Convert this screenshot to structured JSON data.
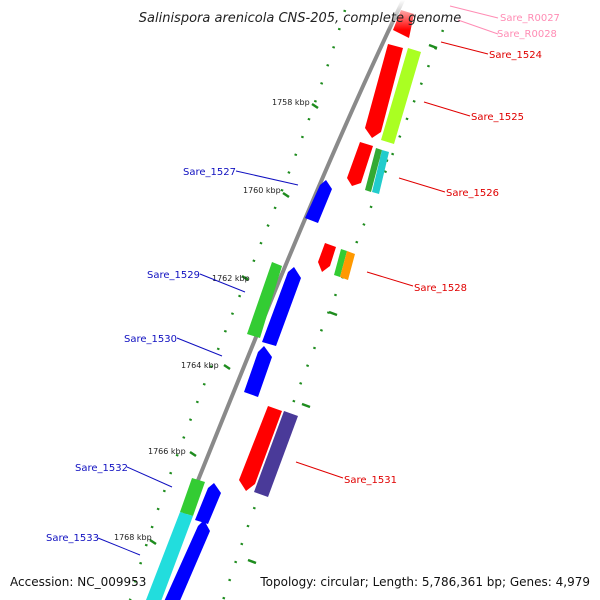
{
  "title": "Salinispora arenicola CNS-205, complete genome",
  "footer": {
    "accession": "Accession: NC_009953",
    "summary": "Topology: circular; Length: 5,786,361 bp; Genes: 4,979"
  },
  "ticks": [
    "1758 kbp",
    "1760 kbp",
    "1762 kbp",
    "1764 kbp",
    "1766 kbp",
    "1768 kbp"
  ],
  "genes": {
    "Sare_R0027": {
      "label": "Sare_R0027",
      "color": "#ff8cb4"
    },
    "Sare_R0028": {
      "label": "Sare_R0028",
      "color": "#ff8cb4"
    },
    "Sare_1524": {
      "label": "Sare_1524",
      "color": "#e00000"
    },
    "Sare_1525": {
      "label": "Sare_1525",
      "color": "#e00000"
    },
    "Sare_1526": {
      "label": "Sare_1526",
      "color": "#e00000"
    },
    "Sare_1528": {
      "label": "Sare_1528",
      "color": "#e00000"
    },
    "Sare_1531": {
      "label": "Sare_1531",
      "color": "#e00000"
    },
    "Sare_1527": {
      "label": "Sare_1527",
      "color": "#1010c0"
    },
    "Sare_1529": {
      "label": "Sare_1529",
      "color": "#1010c0"
    },
    "Sare_1530": {
      "label": "Sare_1530",
      "color": "#1010c0"
    },
    "Sare_1532": {
      "label": "Sare_1532",
      "color": "#1010c0"
    },
    "Sare_1533": {
      "label": "Sare_1533",
      "color": "#1010c0"
    }
  },
  "colors": {
    "backbone": "#8a8a8a",
    "dots": "#1e8c1e",
    "red": "#ff0000",
    "blue": "#0000ff",
    "green": "#33cc33",
    "lime": "#aaff22",
    "cyan": "#22dddd",
    "orange": "#ff9900",
    "purple": "#4a3a99"
  }
}
